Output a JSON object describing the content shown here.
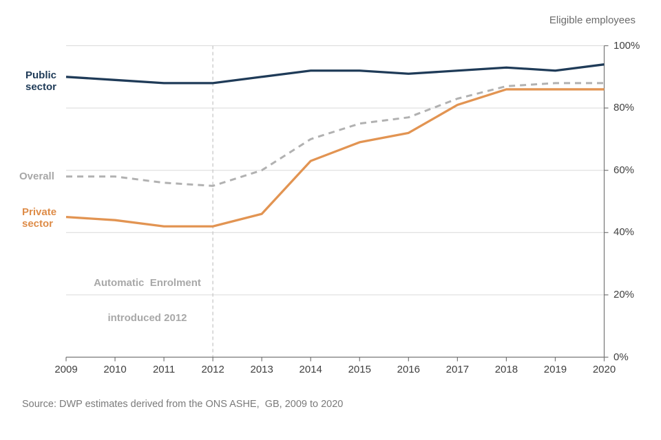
{
  "source": {
    "text": "Source: DWP estimates derived from the ONS ASHE,  GB, 2009 to 2020"
  },
  "annotation": {
    "line1": "Automatic  Enrolment",
    "line2": "introduced 2012",
    "x_year": 2012
  },
  "chart_data": {
    "type": "line",
    "title": "",
    "axis_title": "Eligible employees",
    "xlabel": "",
    "ylabel": "",
    "x": [
      2009,
      2010,
      2011,
      2012,
      2013,
      2014,
      2015,
      2016,
      2017,
      2018,
      2019,
      2020
    ],
    "x_tick_labels": [
      "2009",
      "2010",
      "2011",
      "2012",
      "2013",
      "2014",
      "2015",
      "2016",
      "2017",
      "2018",
      "2019",
      "2020"
    ],
    "ylim": [
      0,
      100
    ],
    "y_ticks": [
      0,
      20,
      40,
      60,
      80,
      100
    ],
    "y_tick_labels": [
      "0%",
      "20%",
      "40%",
      "60%",
      "80%",
      "100%"
    ],
    "grid": "horizontal",
    "legend_position": "direct-labels-left",
    "vline_year": 2012,
    "series": [
      {
        "name": "Public sector",
        "color": "#1f3b58",
        "dash": false,
        "values": [
          90,
          89,
          88,
          88,
          90,
          92,
          92,
          91,
          92,
          93,
          92,
          94
        ]
      },
      {
        "name": "Overall",
        "color": "#b1b1b1",
        "dash": true,
        "values": [
          58,
          58,
          56,
          55,
          60,
          70,
          75,
          77,
          83,
          87,
          88,
          88
        ]
      },
      {
        "name": "Private sector",
        "color": "#e29452",
        "dash": false,
        "values": [
          45,
          44,
          42,
          42,
          46,
          63,
          69,
          72,
          81,
          86,
          86,
          86
        ]
      }
    ],
    "colors": {
      "gridline": "#d9d9d9",
      "axis": "#767676",
      "vline": "#cccccc"
    }
  }
}
